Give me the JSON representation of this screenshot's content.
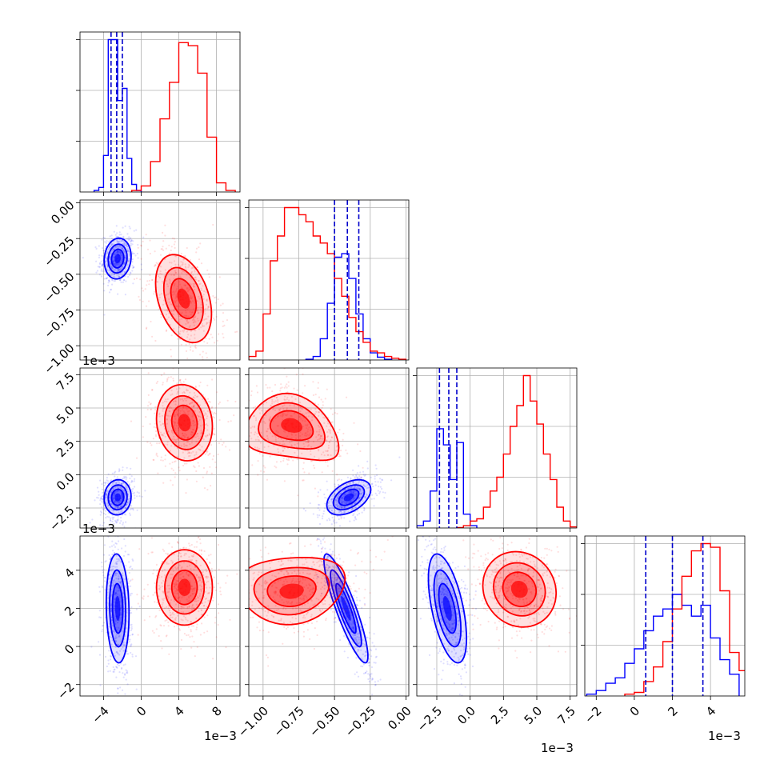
{
  "chart_data": {
    "type": "corner",
    "series": [
      {
        "name": "",
        "color": "#0000ff"
      },
      {
        "name": "",
        "color": "#ff0000"
      }
    ],
    "grid": true,
    "multiplier_label": "1e−3",
    "params": [
      {
        "range": [
          -6.5,
          10.5
        ],
        "ticks": [
          -4,
          0,
          4,
          8
        ],
        "tick_labels": [
          "−4",
          "0",
          "4",
          "8"
        ],
        "multiplier": "1e−3"
      },
      {
        "range": [
          -1.1,
          0.02
        ],
        "ticks": [
          -1.0,
          -0.75,
          -0.5,
          -0.25,
          0.0
        ],
        "tick_labels": [
          "−1.00",
          "−0.75",
          "−0.50",
          "−0.25",
          "0.00"
        ],
        "multiplier": "1e−3"
      },
      {
        "range": [
          -4.0,
          8.0
        ],
        "ticks": [
          -2.5,
          0.0,
          2.5,
          5.0,
          7.5
        ],
        "tick_labels": [
          "−2.5",
          "0.0",
          "2.5",
          "5.0",
          "7.5"
        ],
        "multiplier": "1e−3"
      },
      {
        "range": [
          -2.6,
          5.8
        ],
        "ticks": [
          -2,
          0,
          2,
          4
        ],
        "tick_labels": [
          "−2",
          "0",
          "2",
          "4"
        ],
        "multiplier": "1e−3"
      }
    ],
    "histograms": [
      {
        "param": 0,
        "series": [
          {
            "color": "#0000ff",
            "edges": [
              -5.0,
              -4.5,
              -4.0,
              -3.5,
              -3.0,
              -2.5,
              -2.0,
              -1.5,
              -1.0,
              -0.5,
              0.0
            ],
            "counts": [
              0.05,
              0.15,
              1.2,
              5.0,
              5.0,
              3.0,
              3.4,
              1.1,
              0.25,
              0.05
            ]
          },
          {
            "color": "#ff0000",
            "edges": [
              -1,
              0,
              1,
              2,
              3,
              4,
              5,
              6,
              7,
              8,
              9,
              10
            ],
            "counts": [
              0.05,
              0.2,
              1.0,
              2.4,
              3.6,
              4.9,
              4.8,
              3.9,
              1.8,
              0.3,
              0.05
            ]
          }
        ],
        "quantile_lines": [
          -3.2,
          -2.6,
          -2.0
        ]
      },
      {
        "param": 1,
        "series": [
          {
            "color": "#0000ff",
            "edges": [
              -0.7,
              -0.65,
              -0.6,
              -0.55,
              -0.5,
              -0.45,
              -0.4,
              -0.35,
              -0.3,
              -0.25,
              -0.2,
              -0.15,
              -0.1
            ],
            "counts": [
              0.02,
              0.1,
              0.6,
              1.6,
              2.9,
              3.0,
              2.3,
              1.3,
              0.6,
              0.2,
              0.08,
              0.02
            ]
          },
          {
            "color": "#ff0000",
            "edges": [
              -1.1,
              -1.05,
              -1.0,
              -0.95,
              -0.9,
              -0.85,
              -0.8,
              -0.75,
              -0.7,
              -0.65,
              -0.6,
              -0.55,
              -0.5,
              -0.45,
              -0.4,
              -0.35,
              -0.3,
              -0.25,
              -0.2,
              -0.15,
              -0.1,
              -0.05,
              0.0
            ],
            "counts": [
              0.1,
              0.25,
              1.3,
              2.8,
              3.5,
              4.3,
              4.3,
              4.1,
              3.9,
              3.5,
              3.3,
              3.0,
              2.3,
              1.8,
              1.2,
              0.8,
              0.5,
              0.25,
              0.2,
              0.1,
              0.05,
              0.02
            ]
          }
        ],
        "quantile_lines": [
          -0.5,
          -0.41,
          -0.33
        ]
      },
      {
        "param": 2,
        "series": [
          {
            "color": "#0000ff",
            "edges": [
              -4.0,
              -3.5,
              -3.0,
              -2.5,
              -2.0,
              -1.5,
              -1.0,
              -0.5,
              0.0,
              0.5
            ],
            "counts": [
              0.1,
              0.3,
              1.6,
              4.3,
              3.6,
              2.1,
              3.7,
              0.6,
              0.1
            ]
          },
          {
            "color": "#ff0000",
            "edges": [
              -1,
              -0.5,
              0,
              0.5,
              1,
              1.5,
              2,
              2.5,
              3,
              3.5,
              4,
              4.5,
              5,
              5.5,
              6,
              6.5,
              7,
              7.5,
              8
            ],
            "counts": [
              0.02,
              0.1,
              0.3,
              0.4,
              0.9,
              1.6,
              2.2,
              3.2,
              4.4,
              5.3,
              6.6,
              5.5,
              4.5,
              3.2,
              2.1,
              0.9,
              0.3,
              0.05
            ]
          }
        ],
        "quantile_lines": [
          -2.3,
          -1.6,
          -1.0
        ]
      },
      {
        "param": 3,
        "series": [
          {
            "color": "#0000ff",
            "edges": [
              -2.5,
              -2.0,
              -1.5,
              -1.0,
              -0.5,
              0.0,
              0.5,
              1.0,
              1.5,
              2.0,
              2.5,
              3.0,
              3.5,
              4.0,
              4.5,
              5.0,
              5.5
            ],
            "counts": [
              0.05,
              0.15,
              0.35,
              0.5,
              0.9,
              1.3,
              1.8,
              2.2,
              2.4,
              2.8,
              2.5,
              2.2,
              2.5,
              1.6,
              1.0,
              0.6
            ]
          },
          {
            "color": "#ff0000",
            "edges": [
              -0.5,
              0.0,
              0.5,
              1.0,
              1.5,
              2.0,
              2.5,
              3.0,
              3.5,
              4.0,
              4.5,
              5.0,
              5.5,
              6.0
            ],
            "counts": [
              0.05,
              0.1,
              0.4,
              0.8,
              1.5,
              2.4,
              3.3,
              4.0,
              4.2,
              4.1,
              2.9,
              1.2,
              0.7
            ]
          }
        ],
        "quantile_lines": [
          0.6,
          2.0,
          3.6
        ]
      }
    ],
    "blobs": [
      {
        "row": 1,
        "col": 0,
        "color": "#0000ff",
        "center": [
          -2.5,
          -0.39
        ],
        "sd": [
          0.65,
          0.065
        ],
        "corr": 0.1,
        "deform": 0.0
      },
      {
        "row": 1,
        "col": 0,
        "color": "#ff0000",
        "center": [
          4.5,
          -0.67
        ],
        "sd": [
          1.35,
          0.14
        ],
        "corr": -0.35,
        "deform": 0.0
      },
      {
        "row": 2,
        "col": 0,
        "color": "#0000ff",
        "center": [
          -2.5,
          -1.7
        ],
        "sd": [
          0.65,
          0.6
        ],
        "corr": 0.05,
        "deform": 0.0
      },
      {
        "row": 2,
        "col": 0,
        "color": "#ff0000",
        "center": [
          4.6,
          3.9
        ],
        "sd": [
          1.35,
          1.3
        ],
        "corr": -0.1,
        "deform": 0.0
      },
      {
        "row": 2,
        "col": 1,
        "color": "#0000ff",
        "center": [
          -0.4,
          -1.7
        ],
        "sd": [
          0.07,
          0.6
        ],
        "corr": 0.45,
        "deform": 0.0
      },
      {
        "row": 2,
        "col": 1,
        "color": "#ff0000",
        "center": [
          -0.8,
          3.7
        ],
        "sd": [
          0.15,
          1.1
        ],
        "corr": -0.2,
        "deform": 0.45
      },
      {
        "row": 3,
        "col": 0,
        "color": "#0000ff",
        "center": [
          -2.5,
          2.0
        ],
        "sd": [
          0.55,
          1.3
        ],
        "corr": -0.1,
        "deform": 0.0
      },
      {
        "row": 3,
        "col": 0,
        "color": "#ff0000",
        "center": [
          4.6,
          3.1
        ],
        "sd": [
          1.35,
          0.9
        ],
        "corr": 0.0,
        "deform": 0.0
      },
      {
        "row": 3,
        "col": 1,
        "color": "#0000ff",
        "center": [
          -0.42,
          2.0
        ],
        "sd": [
          0.07,
          1.3
        ],
        "corr": -0.88,
        "deform": 0.0
      },
      {
        "row": 3,
        "col": 1,
        "color": "#ff0000",
        "center": [
          -0.8,
          2.9
        ],
        "sd": [
          0.17,
          0.8
        ],
        "corr": 0.1,
        "deform": -0.25
      },
      {
        "row": 3,
        "col": 2,
        "color": "#0000ff",
        "center": [
          -1.7,
          2.0
        ],
        "sd": [
          0.65,
          1.3
        ],
        "corr": -0.55,
        "deform": 0.0
      },
      {
        "row": 3,
        "col": 2,
        "color": "#ff0000",
        "center": [
          3.7,
          3.0
        ],
        "sd": [
          1.25,
          0.9
        ],
        "corr": -0.1,
        "deform": 0.0
      }
    ]
  }
}
